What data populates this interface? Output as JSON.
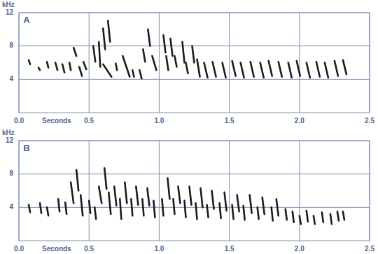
{
  "chart_data": [
    {
      "type": "spectrogram",
      "title": "A",
      "xlabel": "Seconds",
      "ylabel": "kHz",
      "xlim": [
        0,
        2.5
      ],
      "ylim": [
        0,
        12
      ],
      "xticks": [
        {
          "value": 0,
          "label": "0.0"
        },
        0.5,
        {
          "value": 1,
          "label": "1.0"
        },
        1.5,
        {
          "value": 2,
          "label": "2.0"
        },
        2.5
      ],
      "yticks": [
        4,
        8,
        12
      ],
      "grid": true,
      "color": "#1c1c1c",
      "notes": [
        {
          "t": [
            0.07,
            0.08
          ],
          "f": [
            6.3,
            5.8
          ]
        },
        {
          "t": [
            0.14,
            0.15
          ],
          "f": [
            5.4,
            5.1
          ]
        },
        {
          "t": [
            0.2,
            0.21
          ],
          "f": [
            6.1,
            5.4
          ]
        },
        {
          "t": [
            0.26,
            0.275
          ],
          "f": [
            6.0,
            5.1
          ]
        },
        {
          "t": [
            0.31,
            0.325
          ],
          "f": [
            5.8,
            4.8
          ]
        },
        {
          "t": [
            0.36,
            0.37
          ],
          "f": [
            6.0,
            5.1
          ]
        },
        {
          "t": [
            0.39,
            0.41
          ],
          "f": [
            7.8,
            6.8
          ]
        },
        {
          "t": [
            0.43,
            0.45
          ],
          "f": [
            5.5,
            4.4
          ]
        },
        {
          "t": [
            0.46,
            0.48
          ],
          "f": [
            6.1,
            5.2
          ]
        },
        {
          "t": [
            0.53,
            0.545
          ],
          "f": [
            8.0,
            6.1
          ]
        },
        {
          "t": [
            0.57,
            0.58
          ],
          "f": [
            8.5,
            5.5
          ]
        },
        {
          "t": [
            0.6,
            0.615
          ],
          "f": [
            10.1,
            7.6
          ]
        },
        {
          "t": [
            0.635,
            0.65
          ],
          "f": [
            11.0,
            8.5
          ]
        },
        {
          "t": [
            0.6,
            0.66
          ],
          "f": [
            5.8,
            4.3
          ]
        },
        {
          "t": [
            0.69,
            0.7
          ],
          "f": [
            5.9,
            5.1
          ]
        },
        {
          "t": [
            0.74,
            0.79
          ],
          "f": [
            6.8,
            4.3
          ]
        },
        {
          "t": [
            0.81,
            0.82
          ],
          "f": [
            5.1,
            4.3
          ]
        },
        {
          "t": [
            0.86,
            0.875
          ],
          "f": [
            5.1,
            4.1
          ]
        },
        {
          "t": [
            0.885,
            0.9
          ],
          "f": [
            7.6,
            6.1
          ]
        },
        {
          "t": [
            0.92,
            0.935
          ],
          "f": [
            10.0,
            8.0
          ]
        },
        {
          "t": [
            0.95,
            0.98
          ],
          "f": [
            6.8,
            5.1
          ]
        },
        {
          "t": [
            1.03,
            1.045
          ],
          "f": [
            9.3,
            7.2
          ]
        },
        {
          "t": [
            1.05,
            1.065
          ],
          "f": [
            6.8,
            5.1
          ]
        },
        {
          "t": [
            1.08,
            1.095
          ],
          "f": [
            8.9,
            6.8
          ]
        },
        {
          "t": [
            1.11,
            1.125
          ],
          "f": [
            6.8,
            5.5
          ]
        },
        {
          "t": [
            1.165,
            1.18
          ],
          "f": [
            8.5,
            6.0
          ]
        },
        {
          "t": [
            1.19,
            1.205
          ],
          "f": [
            6.0,
            4.7
          ]
        },
        {
          "t": [
            1.235,
            1.25
          ],
          "f": [
            8.0,
            6.0
          ]
        },
        {
          "t": [
            1.27,
            1.29
          ],
          "f": [
            6.4,
            4.3
          ]
        },
        {
          "t": [
            1.32,
            1.345
          ],
          "f": [
            6.0,
            4.2
          ]
        },
        {
          "t": [
            1.38,
            1.405
          ],
          "f": [
            6.1,
            4.3
          ]
        },
        {
          "t": [
            1.45,
            1.475
          ],
          "f": [
            6.0,
            4.2
          ]
        },
        {
          "t": [
            1.52,
            1.545
          ],
          "f": [
            6.2,
            4.4
          ]
        },
        {
          "t": [
            1.58,
            1.605
          ],
          "f": [
            6.0,
            4.2
          ]
        },
        {
          "t": [
            1.65,
            1.675
          ],
          "f": [
            6.1,
            4.3
          ]
        },
        {
          "t": [
            1.72,
            1.745
          ],
          "f": [
            6.0,
            4.2
          ]
        },
        {
          "t": [
            1.78,
            1.805
          ],
          "f": [
            6.2,
            4.4
          ]
        },
        {
          "t": [
            1.85,
            1.875
          ],
          "f": [
            6.1,
            4.3
          ]
        },
        {
          "t": [
            1.92,
            1.945
          ],
          "f": [
            6.0,
            4.2
          ]
        },
        {
          "t": [
            1.98,
            2.005
          ],
          "f": [
            6.2,
            4.4
          ]
        },
        {
          "t": [
            2.05,
            2.075
          ],
          "f": [
            6.0,
            4.2
          ]
        },
        {
          "t": [
            2.12,
            2.145
          ],
          "f": [
            6.1,
            4.3
          ]
        },
        {
          "t": [
            2.18,
            2.205
          ],
          "f": [
            6.0,
            4.2
          ]
        },
        {
          "t": [
            2.25,
            2.275
          ],
          "f": [
            6.2,
            4.4
          ]
        },
        {
          "t": [
            2.31,
            2.335
          ],
          "f": [
            6.3,
            4.6
          ]
        }
      ]
    },
    {
      "type": "spectrogram",
      "title": "B",
      "xlabel": "Seconds",
      "ylabel": "kHz",
      "xlim": [
        0,
        2.5
      ],
      "ylim": [
        0,
        12
      ],
      "xticks": [
        {
          "value": 0,
          "label": "0.0"
        },
        0.5,
        {
          "value": 1,
          "label": "1.0"
        },
        1.5,
        {
          "value": 2,
          "label": "2.0"
        },
        2.5
      ],
      "yticks": [
        4,
        8,
        12
      ],
      "grid": true,
      "color": "#1c1c1c",
      "notes": [
        {
          "t": [
            0.07,
            0.08
          ],
          "f": [
            4.3,
            3.4
          ]
        },
        {
          "t": [
            0.15,
            0.16
          ],
          "f": [
            4.5,
            3.3
          ]
        },
        {
          "t": [
            0.2,
            0.21
          ],
          "f": [
            4.0,
            3.0
          ]
        },
        {
          "t": [
            0.28,
            0.29
          ],
          "f": [
            5.0,
            3.5
          ]
        },
        {
          "t": [
            0.33,
            0.34
          ],
          "f": [
            4.6,
            3.2
          ]
        },
        {
          "t": [
            0.37,
            0.39
          ],
          "f": [
            7.0,
            4.5
          ]
        },
        {
          "t": [
            0.41,
            0.425
          ],
          "f": [
            8.5,
            6.0
          ]
        },
        {
          "t": [
            0.44,
            0.455
          ],
          "f": [
            5.5,
            3.0
          ]
        },
        {
          "t": [
            0.5,
            0.51
          ],
          "f": [
            4.8,
            3.3
          ]
        },
        {
          "t": [
            0.54,
            0.55
          ],
          "f": [
            4.0,
            2.6
          ]
        },
        {
          "t": [
            0.57,
            0.59
          ],
          "f": [
            6.5,
            4.5
          ]
        },
        {
          "t": [
            0.61,
            0.625
          ],
          "f": [
            8.7,
            6.2
          ]
        },
        {
          "t": [
            0.64,
            0.655
          ],
          "f": [
            5.8,
            3.2
          ]
        },
        {
          "t": [
            0.68,
            0.695
          ],
          "f": [
            6.5,
            4.2
          ]
        },
        {
          "t": [
            0.72,
            0.73
          ],
          "f": [
            5.0,
            2.6
          ]
        },
        {
          "t": [
            0.755,
            0.77
          ],
          "f": [
            7.0,
            4.5
          ]
        },
        {
          "t": [
            0.8,
            0.81
          ],
          "f": [
            5.0,
            3.0
          ]
        },
        {
          "t": [
            0.835,
            0.85
          ],
          "f": [
            6.5,
            4.3
          ]
        },
        {
          "t": [
            0.88,
            0.89
          ],
          "f": [
            5.0,
            3.0
          ]
        },
        {
          "t": [
            0.915,
            0.93
          ],
          "f": [
            6.3,
            4.2
          ]
        },
        {
          "t": [
            0.96,
            0.97
          ],
          "f": [
            4.8,
            2.8
          ]
        },
        {
          "t": [
            1.02,
            1.03
          ],
          "f": [
            5.0,
            3.0
          ]
        },
        {
          "t": [
            1.06,
            1.075
          ],
          "f": [
            7.5,
            5.0
          ]
        },
        {
          "t": [
            1.1,
            1.11
          ],
          "f": [
            5.0,
            3.2
          ]
        },
        {
          "t": [
            1.135,
            1.15
          ],
          "f": [
            6.5,
            4.5
          ]
        },
        {
          "t": [
            1.18,
            1.19
          ],
          "f": [
            4.8,
            2.8
          ]
        },
        {
          "t": [
            1.215,
            1.23
          ],
          "f": [
            6.5,
            4.3
          ]
        },
        {
          "t": [
            1.26,
            1.27
          ],
          "f": [
            4.5,
            2.6
          ]
        },
        {
          "t": [
            1.295,
            1.31
          ],
          "f": [
            6.3,
            4.0
          ]
        },
        {
          "t": [
            1.34,
            1.35
          ],
          "f": [
            4.3,
            2.8
          ]
        },
        {
          "t": [
            1.375,
            1.39
          ],
          "f": [
            6.0,
            3.8
          ]
        },
        {
          "t": [
            1.43,
            1.44
          ],
          "f": [
            4.5,
            2.7
          ]
        },
        {
          "t": [
            1.465,
            1.48
          ],
          "f": [
            5.8,
            3.6
          ]
        },
        {
          "t": [
            1.52,
            1.53
          ],
          "f": [
            4.3,
            2.6
          ]
        },
        {
          "t": [
            1.555,
            1.57
          ],
          "f": [
            5.5,
            3.5
          ]
        },
        {
          "t": [
            1.6,
            1.61
          ],
          "f": [
            4.2,
            2.5
          ]
        },
        {
          "t": [
            1.645,
            1.66
          ],
          "f": [
            5.5,
            3.3
          ]
        },
        {
          "t": [
            1.7,
            1.71
          ],
          "f": [
            4.0,
            2.6
          ]
        },
        {
          "t": [
            1.735,
            1.75
          ],
          "f": [
            5.2,
            3.2
          ]
        },
        {
          "t": [
            1.8,
            1.81
          ],
          "f": [
            4.0,
            2.4
          ]
        },
        {
          "t": [
            1.835,
            1.85
          ],
          "f": [
            5.0,
            3.0
          ]
        },
        {
          "t": [
            1.9,
            1.91
          ],
          "f": [
            3.8,
            2.5
          ]
        },
        {
          "t": [
            1.95,
            1.96
          ],
          "f": [
            3.5,
            2.2
          ]
        },
        {
          "t": [
            2.0,
            2.01
          ],
          "f": [
            3.0,
            2.0
          ]
        },
        {
          "t": [
            2.05,
            2.06
          ],
          "f": [
            3.6,
            2.3
          ]
        },
        {
          "t": [
            2.1,
            2.11
          ],
          "f": [
            3.0,
            2.0
          ]
        },
        {
          "t": [
            2.16,
            2.17
          ],
          "f": [
            3.4,
            2.2
          ]
        },
        {
          "t": [
            2.22,
            2.23
          ],
          "f": [
            3.2,
            2.0
          ]
        },
        {
          "t": [
            2.27,
            2.28
          ],
          "f": [
            3.5,
            2.4
          ]
        },
        {
          "t": [
            2.31,
            2.32
          ],
          "f": [
            3.5,
            2.5
          ]
        }
      ]
    }
  ]
}
